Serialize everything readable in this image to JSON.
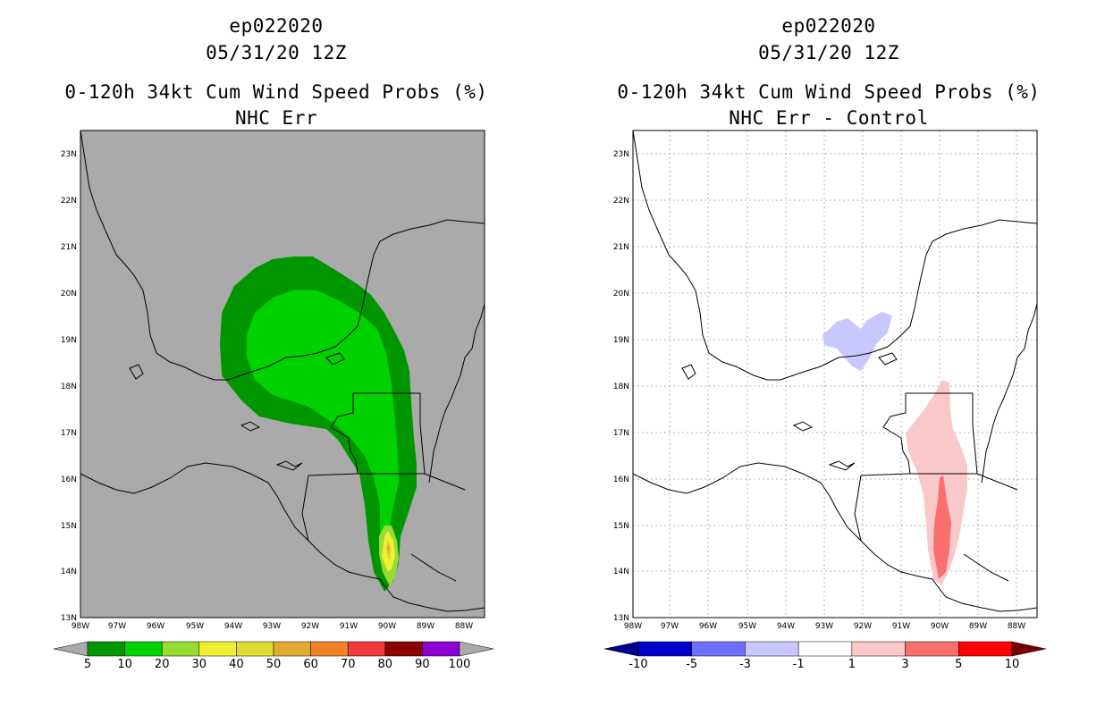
{
  "panels": [
    {
      "title_line1": "ep022020",
      "title_line2": "05/31/20 12Z",
      "title_line3": "0-120h 34kt Cum Wind Speed Probs (%)",
      "title_line4": "NHC Err",
      "background": "#aaaaaa",
      "colorbar": {
        "labels": [
          "5",
          "10",
          "20",
          "30",
          "40",
          "50",
          "60",
          "70",
          "80",
          "90",
          "100"
        ],
        "colors": [
          "#009600",
          "#00d200",
          "#96dc32",
          "#f0f032",
          "#dcdc32",
          "#e1aa32",
          "#f08228",
          "#f03c3c",
          "#8c0000",
          "#8c00d2"
        ],
        "under_color": "#aaaaaa",
        "over_color": "#aaaaaa"
      }
    },
    {
      "title_line1": "ep022020",
      "title_line2": "05/31/20 12Z",
      "title_line3": "0-120h 34kt Cum Wind Speed Probs (%)",
      "title_line4": "NHC Err - Control",
      "background": "#ffffff",
      "colorbar": {
        "labels": [
          "-10",
          "-5",
          "-3",
          "-1",
          "1",
          "3",
          "5",
          "10"
        ],
        "colors": [
          "#0000c8",
          "#6e6eff",
          "#c8c8ff",
          "#ffffff",
          "#fac8c8",
          "#fa6e6e",
          "#ff0000"
        ],
        "under_color": "#00008c",
        "over_color": "#780000"
      }
    }
  ],
  "axes": {
    "lat_labels": [
      "13N",
      "14N",
      "15N",
      "16N",
      "17N",
      "18N",
      "19N",
      "20N",
      "21N",
      "22N",
      "23N"
    ],
    "lon_labels": [
      "98W",
      "97W",
      "96W",
      "95W",
      "94W",
      "93W",
      "92W",
      "91W",
      "90W",
      "89W",
      "88W"
    ]
  }
}
